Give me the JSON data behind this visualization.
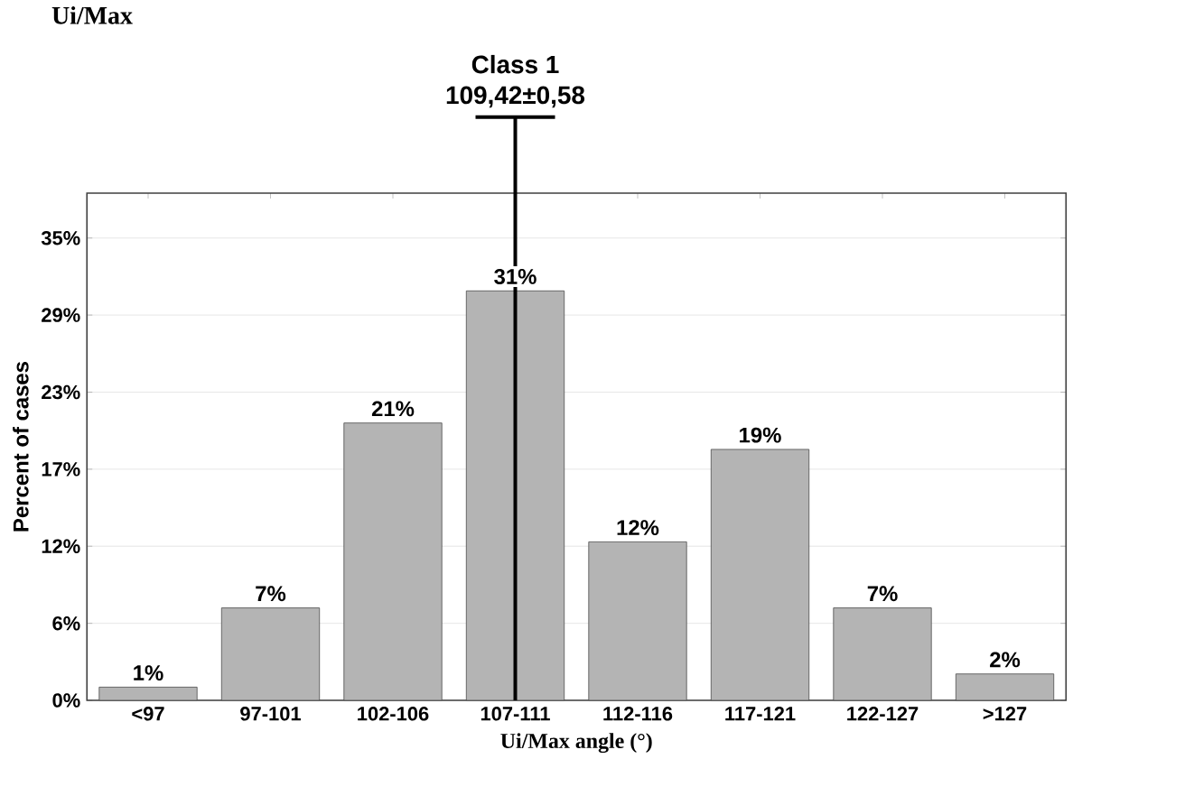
{
  "chart_data": {
    "type": "bar",
    "title": "Ui/Max",
    "xlabel": "Ui/Max  angle (°)",
    "ylabel": "Percent of cases",
    "categories": [
      "<97",
      "97-101",
      "102-106",
      "107-111",
      "112-116",
      "117-121",
      "122-127",
      ">127"
    ],
    "values": [
      1,
      7,
      21,
      31,
      12,
      19,
      7,
      2
    ],
    "value_labels": [
      "1%",
      "7%",
      "21%",
      "31%",
      "12%",
      "19%",
      "7%",
      "2%"
    ],
    "color": "#b4b4b4",
    "ylim": [
      0,
      38.4
    ],
    "yticks": [
      {
        "value": 0,
        "label": "0%"
      },
      {
        "value": 5.83,
        "label": "6%"
      },
      {
        "value": 11.67,
        "label": "12%"
      },
      {
        "value": 17.5,
        "label": "17%"
      },
      {
        "value": 23.33,
        "label": "23%"
      },
      {
        "value": 29.17,
        "label": "29%"
      },
      {
        "value": 35,
        "label": "35%"
      }
    ],
    "grid": "y",
    "ref_lines": [
      {
        "axis": "x",
        "value": "107-111",
        "label": "Class 1",
        "color": "#000000"
      }
    ],
    "annotations": [
      "109,42±0,58"
    ]
  }
}
